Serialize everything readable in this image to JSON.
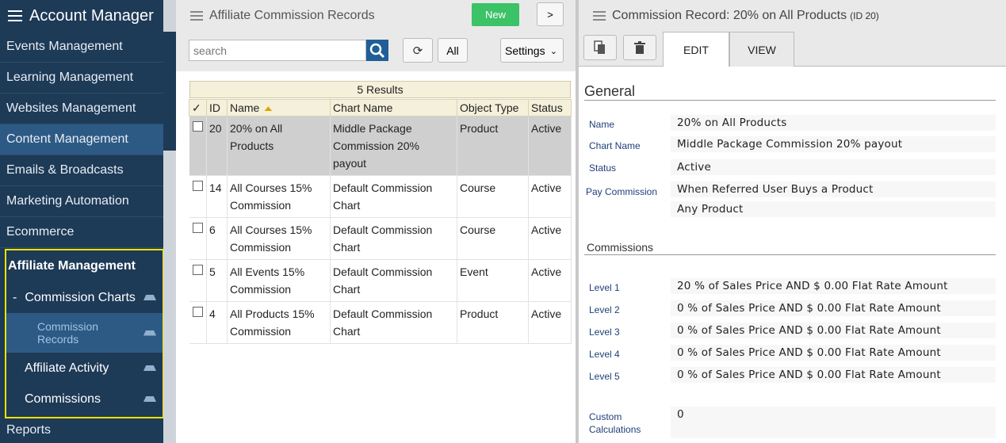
{
  "sidebar": {
    "title": "Account Manager",
    "items": [
      {
        "label": "Events Management"
      },
      {
        "label": "Learning Management"
      },
      {
        "label": "Websites Management"
      },
      {
        "label": "Content Management"
      },
      {
        "label": "Emails & Broadcasts"
      },
      {
        "label": "Marketing Automation"
      },
      {
        "label": "Ecommerce"
      }
    ],
    "affiliate": {
      "label": "Affiliate Management",
      "commission_charts": {
        "prefix": "-",
        "label": "Commission Charts"
      },
      "commission_records": {
        "label": "Commission Records"
      },
      "affiliate_activity": {
        "label": "Affiliate Activity"
      },
      "commissions": {
        "label": "Commissions"
      }
    },
    "reports": {
      "label": "Reports"
    }
  },
  "list_panel": {
    "title": "Affiliate Commission Records",
    "new_label": "New",
    "more_label": ">",
    "search": {
      "placeholder": "search",
      "value": ""
    },
    "refresh_label": "⟳",
    "all_label": "All",
    "settings_label": "Settings",
    "results_label": "5 Results",
    "columns": {
      "check": "✓",
      "id": "ID",
      "name": "Name",
      "chart": "Chart Name",
      "object": "Object Type",
      "status": "Status"
    },
    "rows": [
      {
        "id": "20",
        "name": "20% on All Products",
        "chart": "Middle Package Commission 20% payout",
        "object": "Product",
        "status": "Active"
      },
      {
        "id": "14",
        "name": "All Courses 15% Commission",
        "chart": "Default Commission Chart",
        "object": "Course",
        "status": "Active"
      },
      {
        "id": "6",
        "name": "All Courses 15% Commission",
        "chart": "Default Commission Chart",
        "object": "Course",
        "status": "Active"
      },
      {
        "id": "5",
        "name": "All Events 15% Commission",
        "chart": "Default Commission Chart",
        "object": "Event",
        "status": "Active"
      },
      {
        "id": "4",
        "name": "All Products 15% Commission",
        "chart": "Default Commission Chart",
        "object": "Product",
        "status": "Active"
      }
    ]
  },
  "detail_panel": {
    "title": "Commission Record: 20% on All Products",
    "id_label": "(ID 20)",
    "tabs": {
      "edit": "EDIT",
      "view": "VIEW"
    },
    "general": {
      "heading": "General",
      "name_label": "Name",
      "name_value": "20% on All Products",
      "chart_label": "Chart Name",
      "chart_value": "Middle Package Commission 20% payout",
      "status_label": "Status",
      "status_value": "Active",
      "pay_label": "Pay Commission",
      "pay_value": "When Referred User Buys a Product",
      "pay_value2": "Any Product"
    },
    "commissions": {
      "heading": "Commissions",
      "levels": [
        {
          "label": "Level 1",
          "value": "20 % of Sales Price AND $ 0.00 Flat Rate Amount"
        },
        {
          "label": "Level 2",
          "value": "0 % of Sales Price AND $ 0.00 Flat Rate Amount"
        },
        {
          "label": "Level 3",
          "value": "0 % of Sales Price AND $ 0.00 Flat Rate Amount"
        },
        {
          "label": "Level 4",
          "value": "0 % of Sales Price AND $ 0.00 Flat Rate Amount"
        },
        {
          "label": "Level 5",
          "value": "0 % of Sales Price AND $ 0.00 Flat Rate Amount"
        }
      ],
      "custom_label": "Custom Calculations",
      "custom_value": "0"
    }
  }
}
